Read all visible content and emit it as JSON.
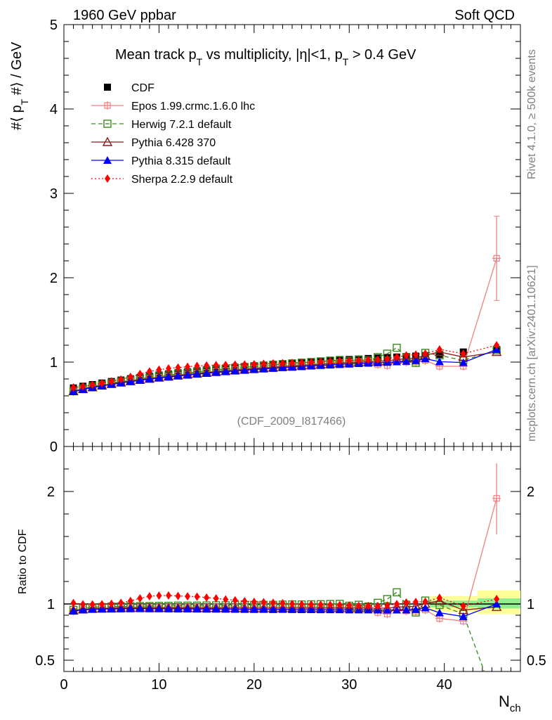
{
  "header": {
    "left": "1960 GeV ppbar",
    "right": "Soft QCD"
  },
  "side_labels": {
    "rivet": "Rivet 4.1.0, ≥ 500k events",
    "mcplots": "mcplots.cern.ch [arXiv:2401.10621]"
  },
  "analysis_id": "(CDF_2009_I817466)",
  "colors": {
    "data": "#000000",
    "epos": "#f08080",
    "herwig": "#3a8a1a",
    "pythia6": "#8b1a1a",
    "pythia8": "#0000ff",
    "sherpa": "#ff0000",
    "band_inner": "#90ee90",
    "band_outer": "#ffff99"
  },
  "chart_data": [
    {
      "type": "scatter",
      "title": "Mean track p_T vs multiplicity, |η|<1, p_T > 0.4 GeV",
      "title_parts": {
        "main": "Mean track p",
        "mid1": " vs multiplicity, |η|<1, p",
        "tail": " > 0.4 GeV",
        "sub": "T"
      },
      "ylabel": "#⟨ p_T #⟩ / GeV",
      "ylabel_parts": {
        "pre": "#⟨ p",
        "sub": "T",
        "post": " #⟩ / GeV"
      },
      "xlim": [
        0,
        48
      ],
      "ylim": [
        0,
        5
      ],
      "yticks": [
        "0",
        "1",
        "2",
        "3",
        "4",
        "5"
      ],
      "x": [
        1,
        2,
        3,
        4,
        5,
        6,
        7,
        8,
        9,
        10,
        11,
        12,
        13,
        14,
        15,
        16,
        17,
        18,
        19,
        20,
        21,
        22,
        23,
        24,
        25,
        26,
        27,
        28,
        29,
        30,
        31,
        32,
        33,
        34,
        35,
        36,
        37,
        38,
        39.5,
        42,
        45.5
      ],
      "series": [
        {
          "name": "CDF",
          "key": "data",
          "marker": "square",
          "values": [
            0.694,
            0.714,
            0.733,
            0.752,
            0.77,
            0.787,
            0.803,
            0.818,
            0.833,
            0.847,
            0.86,
            0.873,
            0.885,
            0.897,
            0.908,
            0.919,
            0.929,
            0.939,
            0.948,
            0.957,
            0.965,
            0.974,
            0.981,
            0.989,
            0.997,
            1.004,
            1.011,
            1.018,
            1.024,
            1.031,
            1.037,
            1.043,
            1.049,
            1.054,
            1.06,
            1.066,
            1.071,
            1.077,
            1.09,
            1.12,
            1.15
          ]
        },
        {
          "name": "Epos 1.99.crmc.1.6.0 lhc",
          "key": "epos",
          "marker": "cross",
          "values": [
            0.65,
            0.681,
            0.703,
            0.723,
            0.744,
            0.763,
            0.779,
            0.794,
            0.809,
            0.823,
            0.836,
            0.848,
            0.86,
            0.872,
            0.882,
            0.894,
            0.903,
            0.913,
            0.922,
            0.931,
            0.939,
            0.948,
            0.955,
            0.962,
            0.97,
            0.977,
            0.983,
            0.99,
            0.996,
            1.002,
            1.008,
            1.013,
            0.97,
            0.96,
            1.03,
            1.0,
            1.0,
            1.02,
            0.95,
            0.95,
            2.23
          ],
          "errors_top": [
            2.73
          ],
          "errors_bottom": [
            1.73
          ]
        },
        {
          "name": "Herwig 7.2.1 default",
          "key": "herwig",
          "marker": "opensquare",
          "values": [
            0.658,
            0.688,
            0.711,
            0.732,
            0.752,
            0.77,
            0.787,
            0.803,
            0.818,
            0.833,
            0.846,
            0.86,
            0.872,
            0.884,
            0.896,
            0.908,
            0.918,
            0.929,
            0.939,
            0.949,
            0.958,
            0.967,
            0.976,
            0.985,
            0.993,
            1.001,
            1.009,
            1.018,
            1.025,
            1.015,
            1.03,
            1.02,
            1.06,
            1.1,
            1.17,
            1.06,
            0.99,
            1.11,
            1.08,
            1.02,
            1.14
          ]
        },
        {
          "name": "Pythia 6.428 370",
          "key": "pythia6",
          "marker": "opentriangle",
          "values": [
            0.655,
            0.68,
            0.702,
            0.722,
            0.741,
            0.759,
            0.775,
            0.79,
            0.804,
            0.817,
            0.83,
            0.842,
            0.854,
            0.864,
            0.875,
            0.885,
            0.895,
            0.904,
            0.913,
            0.921,
            0.929,
            0.937,
            0.945,
            0.952,
            0.96,
            0.966,
            0.973,
            0.98,
            0.986,
            0.992,
            0.998,
            1.004,
            1.01,
            1.015,
            1.03,
            1.04,
            1.05,
            1.08,
            1.12,
            1.06,
            1.12
          ]
        },
        {
          "name": "Pythia 8.315 default",
          "key": "pythia8",
          "marker": "triangle",
          "values": [
            0.65,
            0.676,
            0.698,
            0.718,
            0.736,
            0.753,
            0.769,
            0.784,
            0.798,
            0.811,
            0.823,
            0.835,
            0.846,
            0.857,
            0.867,
            0.877,
            0.886,
            0.895,
            0.903,
            0.911,
            0.919,
            0.926,
            0.934,
            0.94,
            0.947,
            0.954,
            0.96,
            0.966,
            0.972,
            0.977,
            0.983,
            0.988,
            0.993,
            0.998,
            1.004,
            1.01,
            1.018,
            1.04,
            1.005,
            0.995,
            1.15
          ]
        },
        {
          "name": "Sherpa 2.2.9 default",
          "key": "sherpa",
          "marker": "diamond",
          "values": [
            0.7,
            0.712,
            0.73,
            0.75,
            0.772,
            0.795,
            0.825,
            0.859,
            0.89,
            0.91,
            0.925,
            0.935,
            0.945,
            0.955,
            0.96,
            0.965,
            0.967,
            0.97,
            0.972,
            0.975,
            0.98,
            0.985,
            0.988,
            0.99,
            0.995,
            1.0,
            1.005,
            1.01,
            1.015,
            1.018,
            1.02,
            1.025,
            1.03,
            1.04,
            1.06,
            1.08,
            1.09,
            1.1,
            1.15,
            1.1,
            1.2
          ]
        }
      ]
    },
    {
      "type": "scatter",
      "title": "",
      "ylabel": "Ratio to CDF",
      "xlabel": "N_ch",
      "xlabel_parts": {
        "main": "N",
        "sub": "ch"
      },
      "xlim": [
        0,
        48
      ],
      "ylim": [
        0.4,
        2.4
      ],
      "xticks": [
        "0",
        "10",
        "20",
        "30",
        "40"
      ],
      "yticks": [
        "0.5",
        "1",
        "2"
      ],
      "band_ranges": [
        {
          "x0": 38.5,
          "x1": 43.5,
          "inner": [
            0.97,
            1.03
          ],
          "outer": [
            0.93,
            1.07
          ]
        },
        {
          "x0": 43.5,
          "x1": 48,
          "inner": [
            0.96,
            1.05
          ],
          "outer": [
            0.91,
            1.12
          ]
        }
      ]
    }
  ]
}
